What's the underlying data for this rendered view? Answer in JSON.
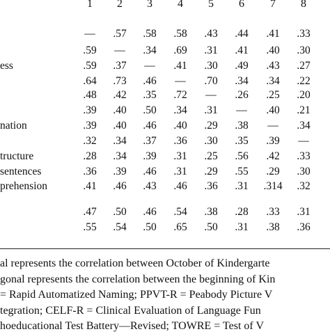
{
  "columns": [
    "1",
    "2",
    "3",
    "4",
    "5",
    "6",
    "7",
    "8"
  ],
  "rows": [
    {
      "label": "",
      "cells": [
        "—",
        ".57",
        ".58",
        ".58",
        ".43",
        ".44",
        ".41",
        ".33"
      ]
    },
    {
      "label": "",
      "cells": [
        ".59",
        "—",
        ".34",
        ".69",
        ".31",
        ".41",
        ".40",
        ".30"
      ]
    },
    {
      "label": "ess",
      "cells": [
        ".59",
        ".37",
        "—",
        ".41",
        ".30",
        ".49",
        ".43",
        ".27"
      ]
    },
    {
      "label": "",
      "cells": [
        ".64",
        ".73",
        ".46",
        "—",
        ".70",
        ".34",
        ".34",
        ".22"
      ]
    },
    {
      "label": "",
      "cells": [
        ".48",
        ".42",
        ".35",
        ".72",
        "—",
        ".26",
        ".25",
        ".20"
      ]
    },
    {
      "label": "",
      "cells": [
        ".39",
        ".40",
        ".50",
        ".34",
        ".31",
        "—",
        ".40",
        ".21"
      ]
    },
    {
      "label": "nation",
      "cells": [
        ".39",
        ".40",
        ".46",
        ".40",
        ".29",
        ".38",
        "—",
        ".34"
      ]
    },
    {
      "label": "",
      "cells": [
        ".32",
        ".34",
        ".37",
        ".36",
        ".30",
        ".35",
        ".39",
        "—"
      ]
    },
    {
      "label": "tructure",
      "cells": [
        ".28",
        ".34",
        ".39",
        ".31",
        ".25",
        ".56",
        ".42",
        ".33"
      ]
    },
    {
      "label": "sentences",
      "cells": [
        ".36",
        ".39",
        ".46",
        ".31",
        ".29",
        ".55",
        ".29",
        ".30"
      ]
    },
    {
      "label": "prehension",
      "cells": [
        ".41",
        ".46",
        ".43",
        ".46",
        ".36",
        ".31",
        ".314",
        ".32"
      ]
    },
    {
      "label": "",
      "cells": [
        ".47",
        ".50",
        ".46",
        ".54",
        ".38",
        ".28",
        ".33",
        ".31"
      ]
    },
    {
      "label": "",
      "cells": [
        ".55",
        ".54",
        ".50",
        ".65",
        ".50",
        ".31",
        ".38",
        ".36"
      ]
    }
  ],
  "notes": [
    "al represents the correlation between October of Kindergarte",
    "gonal represents the correlation between the beginning of Kin",
    "= Rapid Automatized Naming; PPVT-R = Peabody Picture V",
    "tegration; CELF-R = Clinical Evaluation of Language Fun",
    "hoeducational Test Battery—Revised; TOWRE = Test of V"
  ]
}
